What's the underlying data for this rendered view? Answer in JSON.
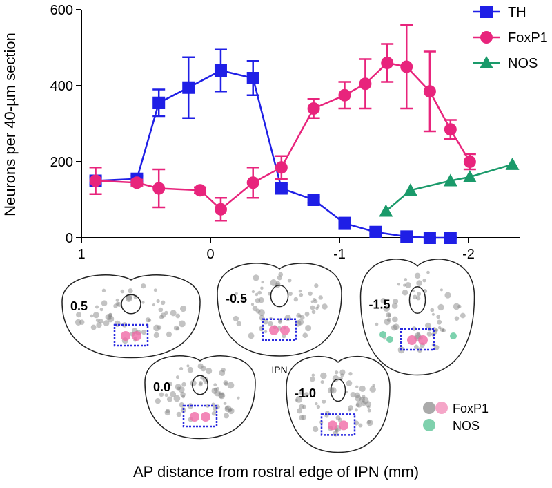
{
  "chart_data": {
    "type": "line",
    "x_label": "AP distance from rostral edge of IPN (mm)",
    "y_label": "Neurons per 40-µm section",
    "xlim": [
      1,
      -2.4
    ],
    "xticks": [
      1,
      0,
      -1,
      -2
    ],
    "ylim": [
      0,
      600
    ],
    "yticks": [
      0,
      200,
      400,
      600
    ],
    "legend": "top-right",
    "series": [
      {
        "name": "TH",
        "color": "#1f1fe6",
        "marker": "square",
        "x": [
          0.89,
          0.57,
          0.4,
          0.17,
          -0.08,
          -0.33,
          -0.55,
          -0.8,
          -1.04,
          -1.28,
          -1.52,
          -1.7,
          -1.86
        ],
        "values": [
          150,
          155,
          355,
          395,
          440,
          420,
          130,
          100,
          38,
          15,
          3,
          0,
          0
        ],
        "errors": [
          10,
          8,
          35,
          80,
          55,
          45,
          10,
          8,
          15,
          5,
          3,
          2,
          2
        ]
      },
      {
        "name": "FoxP1",
        "color": "#e8247c",
        "marker": "circle",
        "x": [
          0.89,
          0.57,
          0.4,
          0.08,
          -0.08,
          -0.33,
          -0.55,
          -0.8,
          -1.04,
          -1.2,
          -1.37,
          -1.52,
          -1.7,
          -1.86,
          -2.01
        ],
        "values": [
          150,
          145,
          130,
          125,
          75,
          145,
          185,
          340,
          375,
          405,
          460,
          450,
          385,
          285,
          200
        ],
        "errors": [
          35,
          8,
          50,
          8,
          30,
          40,
          30,
          25,
          35,
          65,
          50,
          110,
          105,
          25,
          20
        ]
      },
      {
        "name": "NOS",
        "color": "#1a9a6a",
        "marker": "triangle",
        "x": [
          -1.36,
          -1.55,
          -1.86,
          -2.01,
          -2.34
        ],
        "values": [
          70,
          125,
          150,
          160,
          193
        ]
      }
    ]
  },
  "sections": [
    "0.5",
    "-0.5",
    "-1.5",
    "0.0",
    "-1.0"
  ],
  "ipn_label": "IPN",
  "section_legend": [
    "FoxP1",
    "NOS"
  ]
}
